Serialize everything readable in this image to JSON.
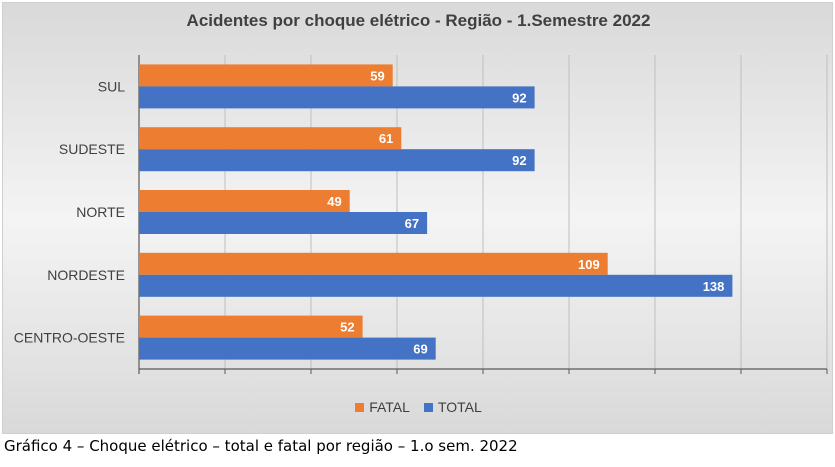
{
  "caption": "Gráfico 4 – Choque elétrico – total e fatal por região – 1.o sem. 2022",
  "chart_data": {
    "type": "bar",
    "orientation": "horizontal",
    "title": "Acidentes por choque elétrico - Região - 1.Semestre 2022",
    "categories": [
      "SUL",
      "SUDESTE",
      "NORTE",
      "NORDESTE",
      "CENTRO-OESTE"
    ],
    "series": [
      {
        "name": "FATAL",
        "color": "#ED7D31",
        "values": [
          59,
          61,
          49,
          109,
          52
        ]
      },
      {
        "name": "TOTAL",
        "color": "#4472C4",
        "values": [
          92,
          92,
          67,
          138,
          69
        ]
      }
    ],
    "xlim": [
      0,
      160
    ],
    "grid": true,
    "legend_position": "bottom",
    "data_labels": true
  }
}
